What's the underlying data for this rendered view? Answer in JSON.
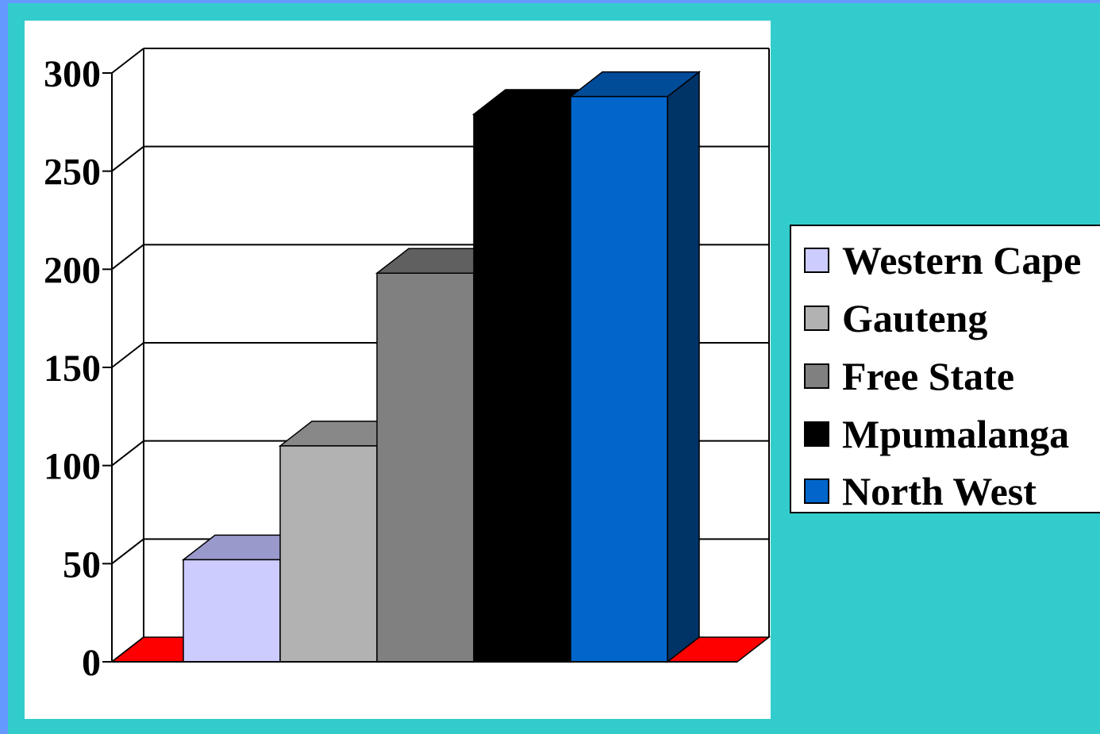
{
  "chart_data": {
    "type": "bar",
    "categories": [
      "Western Cape",
      "Gauteng",
      "Free State",
      "Mpumalanga",
      "North West"
    ],
    "values": [
      52,
      110,
      198,
      279,
      288
    ],
    "ylim": [
      0,
      300
    ],
    "yticks": [
      "0",
      "50",
      "100",
      "150",
      "200",
      "250",
      "300"
    ],
    "grid": true,
    "legend_position": "right",
    "three_d": true,
    "colors": {
      "bars": [
        "#CCCCFF",
        "#B2B2B2",
        "#808080",
        "#000000",
        "#0066CC"
      ],
      "floor": "#FF0000"
    }
  },
  "legend": {
    "items": [
      {
        "label": "Western Cape",
        "color": "#CCCCFF"
      },
      {
        "label": "Gauteng",
        "color": "#B2B2B2"
      },
      {
        "label": "Free State",
        "color": "#808080"
      },
      {
        "label": "Mpumalanga",
        "color": "#000000"
      },
      {
        "label": "North West",
        "color": "#0066CC"
      }
    ]
  },
  "colors": {
    "background": "#33CCCC",
    "border_stripe": "#6699FF",
    "panel": "#FFFFFF"
  }
}
